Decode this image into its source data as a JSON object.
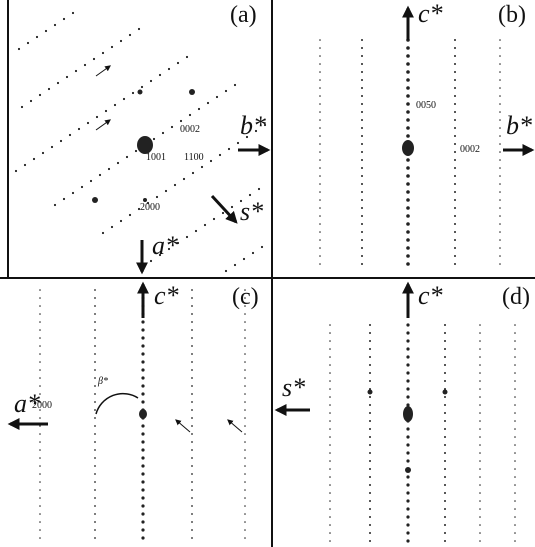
{
  "panels": [
    {
      "label": "(a)",
      "axes": [
        "b*",
        "s*",
        "a*"
      ],
      "indices": [
        "0002",
        "1001",
        "1100",
        "2000"
      ]
    },
    {
      "label": "(b)",
      "axes": [
        "c*",
        "b*"
      ],
      "indices": [
        "0050",
        "0002"
      ]
    },
    {
      "label": "(c)",
      "axes": [
        "c*",
        "a*"
      ],
      "indices": [
        "2000"
      ],
      "angle": "β*"
    },
    {
      "label": "(d)",
      "axes": [
        "c*",
        "s*"
      ]
    }
  ]
}
